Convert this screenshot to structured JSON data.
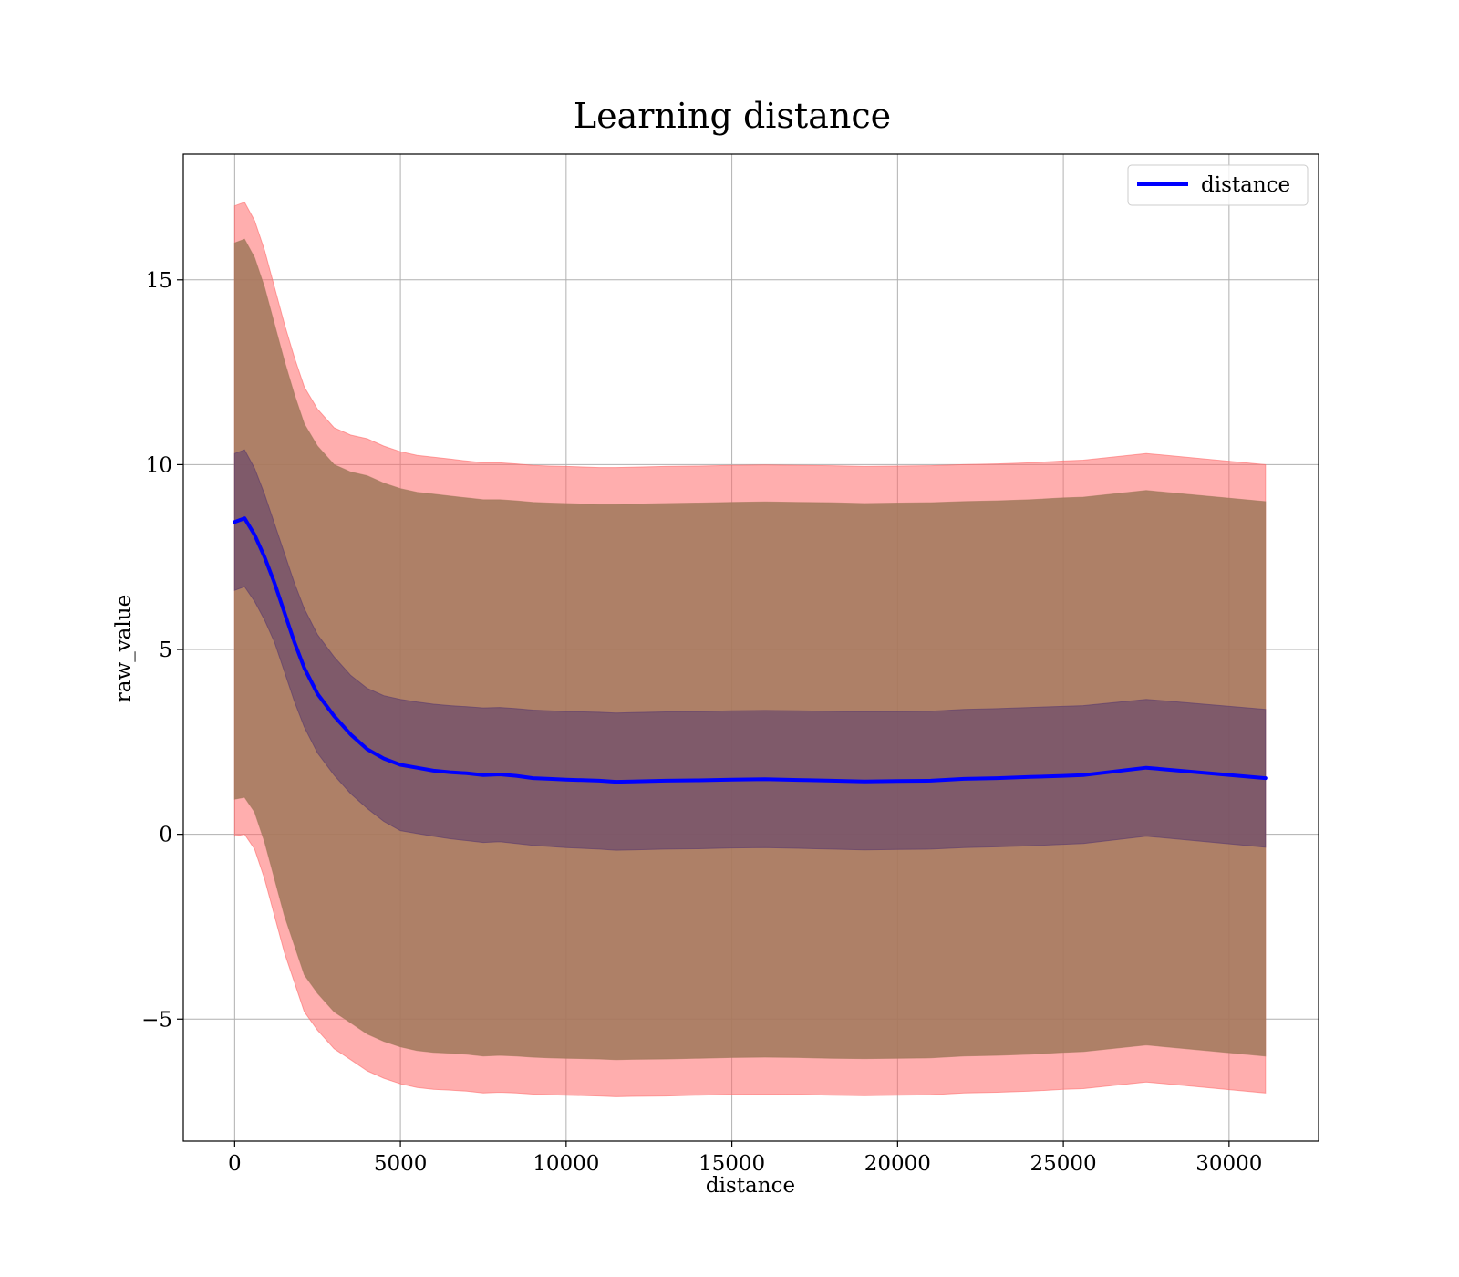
{
  "chart_data": {
    "type": "area",
    "title": "Learning distance",
    "xlabel": "distance",
    "ylabel": "raw_value",
    "xlim": [
      -1550,
      32700
    ],
    "ylim": [
      -8.3,
      18.4
    ],
    "xticks": [
      0,
      5000,
      10000,
      15000,
      20000,
      25000,
      30000
    ],
    "xtick_labels": [
      "0",
      "5000",
      "10000",
      "15000",
      "20000",
      "25000",
      "30000"
    ],
    "yticks": [
      -5,
      0,
      5,
      10,
      15
    ],
    "ytick_labels": [
      "−5",
      "0",
      "5",
      "10",
      "15"
    ],
    "grid": true,
    "legend": {
      "placement": "top-right",
      "entries": [
        "distance"
      ]
    },
    "colors": {
      "line": "#0000ff",
      "outer_band": "#ff6b6b",
      "middle_band": "#a0785a",
      "inner_band": "#5a3a6e"
    },
    "x": [
      0,
      300,
      600,
      900,
      1200,
      1500,
      1800,
      2100,
      2500,
      3000,
      3500,
      4000,
      4500,
      5000,
      5500,
      6000,
      6500,
      7000,
      7500,
      8000,
      8500,
      9000,
      9500,
      10000,
      11000,
      11500,
      12000,
      13000,
      14000,
      15000,
      16000,
      17000,
      18000,
      19000,
      20000,
      21000,
      22000,
      23000,
      24000,
      25000,
      25600,
      27500,
      31100
    ],
    "series": [
      {
        "name": "distance",
        "values": [
          8.45,
          8.55,
          8.1,
          7.5,
          6.8,
          6.0,
          5.2,
          4.5,
          3.8,
          3.2,
          2.7,
          2.3,
          2.05,
          1.88,
          1.8,
          1.72,
          1.68,
          1.65,
          1.6,
          1.62,
          1.58,
          1.52,
          1.5,
          1.48,
          1.45,
          1.42,
          1.43,
          1.45,
          1.46,
          1.48,
          1.49,
          1.47,
          1.45,
          1.43,
          1.44,
          1.45,
          1.5,
          1.52,
          1.55,
          1.58,
          1.6,
          1.8,
          1.52
        ]
      }
    ],
    "bands": [
      {
        "name": "outer",
        "upper": [
          17.0,
          17.1,
          16.6,
          15.8,
          14.8,
          13.8,
          12.9,
          12.1,
          11.5,
          11.0,
          10.8,
          10.7,
          10.5,
          10.35,
          10.25,
          10.2,
          10.15,
          10.1,
          10.05,
          10.05,
          10.02,
          9.98,
          9.96,
          9.95,
          9.92,
          9.92,
          9.93,
          9.95,
          9.96,
          9.98,
          9.99,
          9.98,
          9.97,
          9.95,
          9.96,
          9.97,
          10.0,
          10.02,
          10.05,
          10.1,
          10.12,
          10.3,
          10.0
        ],
        "lower": [
          -0.05,
          0.0,
          -0.4,
          -1.2,
          -2.2,
          -3.2,
          -4.0,
          -4.8,
          -5.3,
          -5.8,
          -6.1,
          -6.4,
          -6.6,
          -6.75,
          -6.85,
          -6.9,
          -6.92,
          -6.95,
          -7.0,
          -6.98,
          -7.0,
          -7.03,
          -7.05,
          -7.06,
          -7.08,
          -7.1,
          -7.09,
          -7.08,
          -7.06,
          -7.04,
          -7.03,
          -7.04,
          -7.06,
          -7.07,
          -7.06,
          -7.05,
          -7.0,
          -6.98,
          -6.95,
          -6.9,
          -6.88,
          -6.7,
          -7.0
        ]
      },
      {
        "name": "middle",
        "upper": [
          16.0,
          16.1,
          15.6,
          14.8,
          13.8,
          12.8,
          11.9,
          11.1,
          10.5,
          10.0,
          9.8,
          9.7,
          9.5,
          9.35,
          9.25,
          9.2,
          9.15,
          9.1,
          9.05,
          9.05,
          9.02,
          8.98,
          8.96,
          8.95,
          8.92,
          8.92,
          8.93,
          8.95,
          8.96,
          8.98,
          8.99,
          8.98,
          8.97,
          8.95,
          8.96,
          8.97,
          9.0,
          9.02,
          9.05,
          9.1,
          9.12,
          9.3,
          9.0
        ],
        "lower": [
          0.95,
          1.0,
          0.6,
          -0.2,
          -1.2,
          -2.2,
          -3.0,
          -3.8,
          -4.3,
          -4.8,
          -5.1,
          -5.4,
          -5.6,
          -5.75,
          -5.85,
          -5.9,
          -5.92,
          -5.95,
          -6.0,
          -5.98,
          -6.0,
          -6.03,
          -6.05,
          -6.06,
          -6.08,
          -6.1,
          -6.09,
          -6.08,
          -6.06,
          -6.04,
          -6.03,
          -6.04,
          -6.06,
          -6.07,
          -6.06,
          -6.05,
          -6.0,
          -5.98,
          -5.95,
          -5.9,
          -5.88,
          -5.7,
          -6.0
        ]
      },
      {
        "name": "inner",
        "upper": [
          10.3,
          10.4,
          9.9,
          9.2,
          8.4,
          7.6,
          6.8,
          6.1,
          5.4,
          4.8,
          4.3,
          3.95,
          3.75,
          3.65,
          3.58,
          3.52,
          3.48,
          3.45,
          3.42,
          3.43,
          3.4,
          3.36,
          3.34,
          3.32,
          3.3,
          3.28,
          3.29,
          3.31,
          3.32,
          3.34,
          3.35,
          3.34,
          3.33,
          3.31,
          3.32,
          3.33,
          3.38,
          3.4,
          3.43,
          3.46,
          3.48,
          3.65,
          3.38
        ],
        "lower": [
          6.6,
          6.7,
          6.3,
          5.8,
          5.2,
          4.4,
          3.6,
          2.9,
          2.2,
          1.6,
          1.1,
          0.7,
          0.35,
          0.1,
          0.02,
          -0.05,
          -0.12,
          -0.17,
          -0.22,
          -0.2,
          -0.25,
          -0.3,
          -0.33,
          -0.36,
          -0.4,
          -0.43,
          -0.42,
          -0.4,
          -0.39,
          -0.37,
          -0.36,
          -0.38,
          -0.4,
          -0.42,
          -0.41,
          -0.4,
          -0.36,
          -0.34,
          -0.31,
          -0.27,
          -0.25,
          -0.05,
          -0.35
        ]
      }
    ]
  }
}
